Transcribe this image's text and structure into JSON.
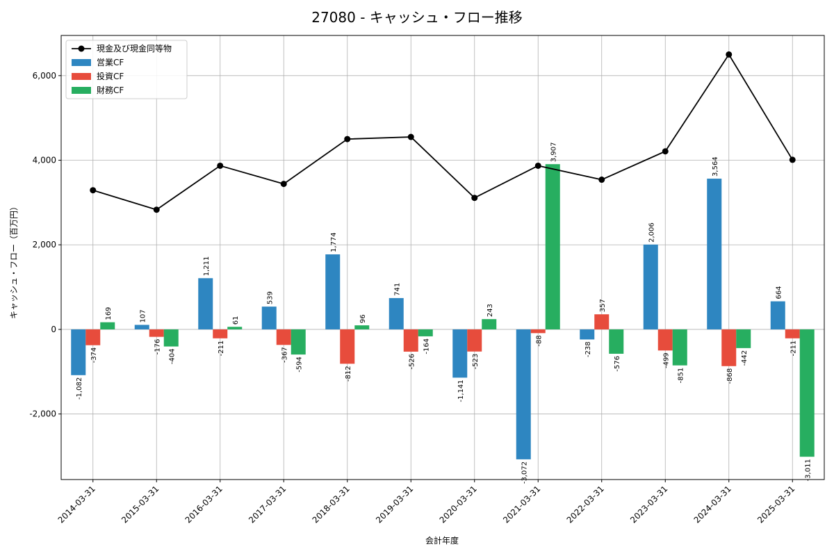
{
  "chart_data": {
    "type": "bar",
    "title": "27080 - キャッシュ・フロー推移",
    "xlabel": "会計年度",
    "ylabel": "キャッシュ・フロー（百万円）",
    "categories": [
      "2014-03-31",
      "2015-03-31",
      "2016-03-31",
      "2017-03-31",
      "2018-03-31",
      "2019-03-31",
      "2020-03-31",
      "2021-03-31",
      "2022-03-31",
      "2023-03-31",
      "2024-03-31",
      "2025-03-31"
    ],
    "ylim": [
      -3550,
      6950
    ],
    "yticks": [
      -2000,
      0,
      2000,
      4000,
      6000
    ],
    "ytick_labels": [
      "-2,000",
      "0",
      "2,000",
      "4,000",
      "6,000"
    ],
    "grid": true,
    "legend_position": "top-left",
    "series": [
      {
        "name": "営業CF",
        "kind": "bar",
        "color": "#2e86c1",
        "values": [
          -1082,
          107,
          1211,
          539,
          1774,
          741,
          -1141,
          -3072,
          -238,
          2006,
          3564,
          664
        ],
        "labels": [
          "-1,082",
          "107",
          "1,211",
          "539",
          "1,774",
          "741",
          "-1,141",
          "-3,072",
          "-238",
          "2,006",
          "3,564",
          "664"
        ]
      },
      {
        "name": "投資CF",
        "kind": "bar",
        "color": "#e74c3c",
        "values": [
          -374,
          -176,
          -211,
          -367,
          -812,
          -526,
          -523,
          -88,
          357,
          -499,
          -868,
          -211
        ],
        "labels": [
          "-374",
          "-176",
          "-211",
          "-367",
          "-812",
          "-526",
          "-523",
          "-88",
          "357",
          "-499",
          "-868",
          "-211"
        ]
      },
      {
        "name": "財務CF",
        "kind": "bar",
        "color": "#27ae60",
        "values": [
          169,
          -404,
          61,
          -594,
          96,
          -164,
          243,
          3907,
          -576,
          -851,
          -442,
          -3011
        ],
        "labels": [
          "169",
          "-404",
          "61",
          "-594",
          "96",
          "-164",
          "243",
          "3,907",
          "-576",
          "-851",
          "-442",
          "-3,011"
        ]
      },
      {
        "name": "現金及び現金同等物",
        "kind": "line",
        "color": "#000000",
        "values": [
          3290,
          2830,
          3870,
          3440,
          4500,
          4550,
          3110,
          3870,
          3540,
          4210,
          6500,
          4010
        ]
      }
    ]
  }
}
